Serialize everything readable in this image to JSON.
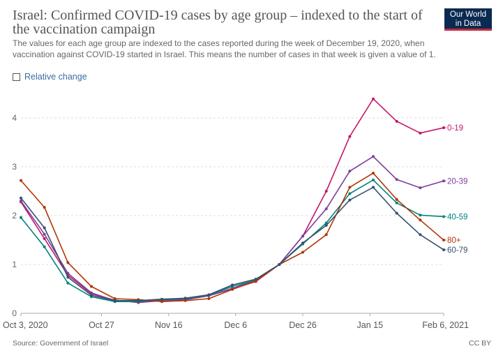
{
  "header": {
    "title": "Israel: Confirmed COVID-19 cases by age group – indexed to the start of the vaccination campaign",
    "subtitle": "The values for each age group are indexed to the cases reported during the week of December 19, 2020, when vaccination against COVID-19 started in Israel. This means the number of cases in that week is given a value of 1.",
    "logo_line1": "Our World",
    "logo_line2": "in Data"
  },
  "controls": {
    "relative_change_label": "Relative change"
  },
  "footer": {
    "source": "Source: Government of Israel",
    "license": "CC BY"
  },
  "chart_data": {
    "type": "line",
    "title": "Israel: Confirmed COVID-19 cases by age group – indexed to the start of the vaccination campaign",
    "xlabel": "",
    "ylabel": "",
    "ylim": [
      0,
      4.5
    ],
    "y_ticks": [
      0,
      1,
      2,
      3,
      4
    ],
    "x_ticks": [
      "Oct 3, 2020",
      "Oct 27",
      "Nov 16",
      "Dec 6",
      "Dec 26",
      "Jan 15",
      "Feb 6, 2021"
    ],
    "x_tick_index": [
      0,
      3.43,
      6.29,
      9.14,
      12,
      14.86,
      18
    ],
    "x": [
      "Oct 3, 2020",
      "Oct 10",
      "Oct 17",
      "Oct 24",
      "Oct 31",
      "Nov 7",
      "Nov 14",
      "Nov 21",
      "Nov 28",
      "Dec 5",
      "Dec 12",
      "Dec 19",
      "Dec 26",
      "Jan 2",
      "Jan 9",
      "Jan 16",
      "Jan 23",
      "Jan 30",
      "Feb 6, 2021"
    ],
    "grid": true,
    "series": [
      {
        "name": "0-19",
        "color": "#c3176b",
        "values": [
          2.28,
          1.53,
          0.78,
          0.4,
          0.27,
          0.22,
          0.26,
          0.28,
          0.36,
          0.5,
          0.65,
          1.0,
          1.58,
          2.5,
          3.62,
          4.39,
          3.93,
          3.69,
          3.8
        ]
      },
      {
        "name": "20-39",
        "color": "#7b3f9e",
        "values": [
          2.3,
          1.62,
          0.82,
          0.42,
          0.26,
          0.23,
          0.26,
          0.28,
          0.36,
          0.51,
          0.68,
          1.0,
          1.58,
          2.14,
          2.91,
          3.21,
          2.74,
          2.57,
          2.71
        ]
      },
      {
        "name": "40-59",
        "color": "#00847e",
        "values": [
          1.96,
          1.36,
          0.62,
          0.34,
          0.24,
          0.24,
          0.28,
          0.3,
          0.37,
          0.55,
          0.68,
          1.0,
          1.42,
          1.85,
          2.45,
          2.73,
          2.26,
          2.01,
          1.98
        ]
      },
      {
        "name": "80+",
        "color": "#b13507",
        "values": [
          2.72,
          2.17,
          1.04,
          0.55,
          0.3,
          0.28,
          0.24,
          0.26,
          0.3,
          0.49,
          0.66,
          1.0,
          1.25,
          1.61,
          2.58,
          2.87,
          2.33,
          1.91,
          1.5
        ]
      },
      {
        "name": "60-79",
        "color": "#38506c",
        "values": [
          2.36,
          1.75,
          0.74,
          0.37,
          0.26,
          0.26,
          0.29,
          0.31,
          0.38,
          0.58,
          0.7,
          1.0,
          1.44,
          1.8,
          2.32,
          2.58,
          2.05,
          1.61,
          1.3
        ]
      }
    ]
  }
}
